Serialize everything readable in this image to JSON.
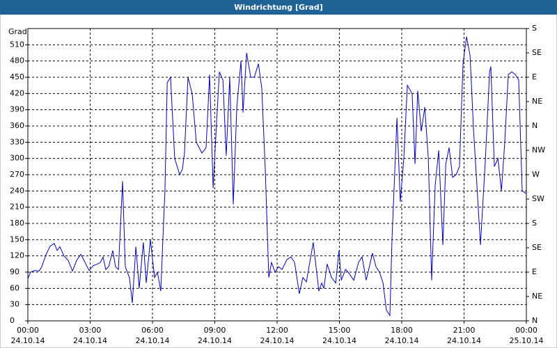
{
  "chart_data": {
    "type": "line",
    "title": "Windrichtung [Grad]",
    "y_label": "Grad",
    "color": "#0000c8",
    "grid": true,
    "x": [
      0,
      0.13,
      0.34,
      0.54,
      0.67,
      0.87,
      1.07,
      1.27,
      1.41,
      1.54,
      1.74,
      1.94,
      2.15,
      2.35,
      2.55,
      2.75,
      2.95,
      3.15,
      3.35,
      3.49,
      3.62,
      3.75,
      3.89,
      4.09,
      4.22,
      4.36,
      4.56,
      4.69,
      4.89,
      5.03,
      5.2,
      5.36,
      5.56,
      5.7,
      5.9,
      6.1,
      6.24,
      6.4,
      6.5,
      6.6,
      6.71,
      6.87,
      7.07,
      7.31,
      7.44,
      7.54,
      7.71,
      7.91,
      8.11,
      8.38,
      8.58,
      8.75,
      8.92,
      9.02,
      9.22,
      9.39,
      9.55,
      9.72,
      9.89,
      10.06,
      10.26,
      10.36,
      10.53,
      10.73,
      10.9,
      11.1,
      11.26,
      11.43,
      11.6,
      11.73,
      11.9,
      12.07,
      12.24,
      12.47,
      12.67,
      12.84,
      13.07,
      13.24,
      13.41,
      13.74,
      14.01,
      14.15,
      14.25,
      14.41,
      14.62,
      14.82,
      14.98,
      15.09,
      15.29,
      15.42,
      15.69,
      15.92,
      16.09,
      16.29,
      16.59,
      16.76,
      16.93,
      17.1,
      17.26,
      17.43,
      17.53,
      17.77,
      17.93,
      18.1,
      18.27,
      18.5,
      18.64,
      18.77,
      18.94,
      19.11,
      19.28,
      19.44,
      19.61,
      19.78,
      19.98,
      20.12,
      20.28,
      20.45,
      20.62,
      20.78,
      20.95,
      21.12,
      21.29,
      21.46,
      21.62,
      21.79,
      22.03,
      22.23,
      22.29,
      22.46,
      22.63,
      22.8,
      22.96,
      23.13,
      23.3,
      23.47,
      23.63,
      23.8,
      24
    ],
    "series": [
      {
        "name": "Windrichtung",
        "color": "#0000c8",
        "values": [
          78,
          90,
          93,
          92,
          100,
          122,
          138,
          143,
          130,
          137,
          120,
          112,
          92,
          112,
          123,
          108,
          93,
          102,
          105,
          108,
          118,
          95,
          100,
          130,
          100,
          95,
          258,
          100,
          80,
          33,
          137,
          60,
          145,
          70,
          150,
          80,
          90,
          55,
          150,
          240,
          440,
          450,
          300,
          270,
          280,
          310,
          450,
          420,
          330,
          310,
          320,
          455,
          245,
          320,
          460,
          445,
          305,
          450,
          215,
          395,
          480,
          385,
          495,
          450,
          450,
          475,
          430,
          280,
          80,
          108,
          90,
          100,
          95,
          113,
          118,
          108,
          50,
          80,
          72,
          145,
          55,
          70,
          60,
          105,
          80,
          70,
          130,
          75,
          95,
          90,
          75,
          108,
          118,
          75,
          125,
          100,
          90,
          70,
          20,
          10,
          150,
          375,
          220,
          300,
          435,
          420,
          290,
          425,
          350,
          395,
          300,
          75,
          250,
          315,
          140,
          290,
          320,
          265,
          270,
          285,
          475,
          525,
          490,
          350,
          250,
          140,
          300,
          460,
          470,
          285,
          300,
          240,
          330,
          455,
          460,
          455,
          445,
          240,
          235
        ]
      }
    ],
    "xlim": [
      0,
      24
    ],
    "xticks": [
      {
        "value": 0,
        "label": "00:00",
        "date": "24.10.14"
      },
      {
        "value": 3,
        "label": "03:00",
        "date": "24.10.14"
      },
      {
        "value": 6,
        "label": "06:00",
        "date": "24.10.14"
      },
      {
        "value": 9,
        "label": "09:00",
        "date": "24.10.14"
      },
      {
        "value": 12,
        "label": "12:00",
        "date": "24.10.14"
      },
      {
        "value": 15,
        "label": "15:00",
        "date": "24.10.14"
      },
      {
        "value": 18,
        "label": "18:00",
        "date": "24.10.14"
      },
      {
        "value": 21,
        "label": "21:00",
        "date": "24.10.14"
      },
      {
        "value": 24,
        "label": "00:00",
        "date": "25.10.14"
      }
    ],
    "ylim": [
      0,
      540
    ],
    "yticks": [
      0,
      30,
      60,
      90,
      120,
      150,
      180,
      210,
      240,
      270,
      300,
      330,
      360,
      390,
      420,
      450,
      480,
      510
    ],
    "y2lim": [
      0,
      540
    ],
    "y2ticks": [
      {
        "value": 0,
        "label": "N"
      },
      {
        "value": 45,
        "label": "NE"
      },
      {
        "value": 90,
        "label": "E"
      },
      {
        "value": 135,
        "label": "SE"
      },
      {
        "value": 180,
        "label": "S"
      },
      {
        "value": 225,
        "label": "SW"
      },
      {
        "value": 270,
        "label": "W"
      },
      {
        "value": 315,
        "label": "NW"
      },
      {
        "value": 360,
        "label": "N"
      },
      {
        "value": 405,
        "label": "NE"
      },
      {
        "value": 450,
        "label": "E"
      },
      {
        "value": 495,
        "label": "SE"
      },
      {
        "value": 540,
        "label": "S"
      }
    ]
  }
}
